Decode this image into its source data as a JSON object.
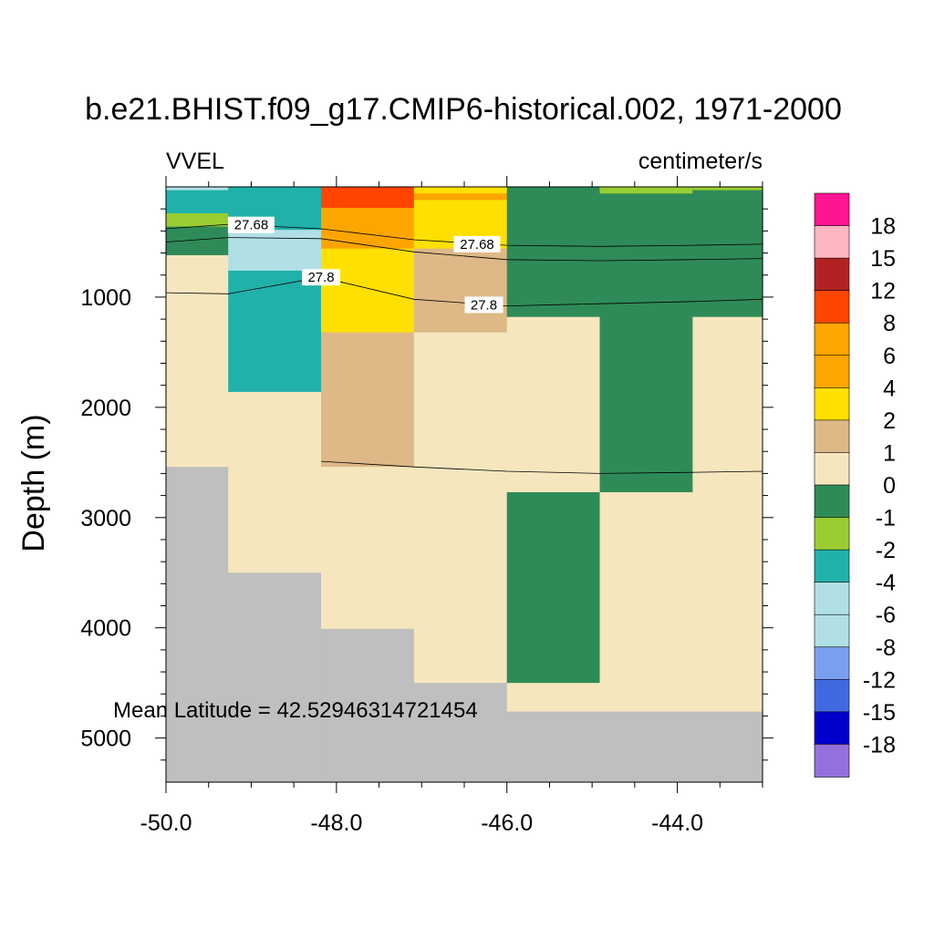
{
  "chart_data": {
    "type": "heatmap",
    "title": "b.e21.BHIST.f09_g17.CMIP6-historical.002, 1971-2000",
    "left_label": "VVEL",
    "right_label": "centimeter/s",
    "xlabel": "",
    "ylabel": "Depth (m)",
    "xlim": [
      -50.0,
      -43.0
    ],
    "ylim": [
      5400,
      0
    ],
    "x_ticks": [
      -50.0,
      -48.0,
      -46.0,
      -44.0
    ],
    "x_tick_labels": [
      "-50.0",
      "-48.0",
      "-46.0",
      "-44.0"
    ],
    "y_ticks": [
      1000,
      2000,
      3000,
      4000,
      5000
    ],
    "y_tick_labels": [
      "1000",
      "2000",
      "3000",
      "4000",
      "5000"
    ],
    "annotation": "Mean Latitude = 42.52946314721454",
    "colorbar": {
      "labels": [
        "18",
        "15",
        "12",
        "8",
        "6",
        "4",
        "2",
        "1",
        "0",
        "-1",
        "-2",
        "-4",
        "-6",
        "-8",
        "-12",
        "-15",
        "-18"
      ],
      "colors": [
        "#ff1493",
        "#ffb6c1",
        "#b22222",
        "#ff4500",
        "#ffa500",
        "#ffa500",
        "#ffe000",
        "#deb887",
        "#f5e6be",
        "#2e8b57",
        "#9acd32",
        "#20b2aa",
        "#b0e0e6",
        "#b0e0e6",
        "#7b9ff0",
        "#4169e1",
        "#0000cd",
        "#9370db"
      ]
    },
    "cells": [
      {
        "x": [
          -50.0,
          -49.27
        ],
        "y": [
          0,
          30
        ],
        "color": "#b0e0e6"
      },
      {
        "x": [
          -50.0,
          -49.27
        ],
        "y": [
          30,
          240
        ],
        "color": "#20b2aa"
      },
      {
        "x": [
          -50.0,
          -49.27
        ],
        "y": [
          240,
          360
        ],
        "color": "#9acd32"
      },
      {
        "x": [
          -50.0,
          -49.27
        ],
        "y": [
          360,
          620
        ],
        "color": "#2e8b57"
      },
      {
        "x": [
          -50.0,
          -49.27
        ],
        "y": [
          620,
          2540
        ],
        "color": "#f5e6be"
      },
      {
        "x": [
          -50.0,
          -49.27
        ],
        "y": [
          2540,
          5400
        ],
        "color": "#bfbfbf"
      },
      {
        "x": [
          -49.27,
          -48.18
        ],
        "y": [
          0,
          390
        ],
        "color": "#20b2aa"
      },
      {
        "x": [
          -49.27,
          -48.18
        ],
        "y": [
          390,
          760
        ],
        "color": "#b0e0e6"
      },
      {
        "x": [
          -49.27,
          -48.18
        ],
        "y": [
          760,
          1860
        ],
        "color": "#20b2aa"
      },
      {
        "x": [
          -49.27,
          -48.18
        ],
        "y": [
          1860,
          3500
        ],
        "color": "#f5e6be"
      },
      {
        "x": [
          -49.27,
          -48.18
        ],
        "y": [
          3500,
          5400
        ],
        "color": "#bfbfbf"
      },
      {
        "x": [
          -48.18,
          -47.09
        ],
        "y": [
          0,
          190
        ],
        "color": "#ff4500"
      },
      {
        "x": [
          -48.18,
          -47.09
        ],
        "y": [
          190,
          560
        ],
        "color": "#ffa500"
      },
      {
        "x": [
          -48.18,
          -47.09
        ],
        "y": [
          560,
          1320
        ],
        "color": "#ffe000"
      },
      {
        "x": [
          -48.18,
          -47.09
        ],
        "y": [
          1320,
          2540
        ],
        "color": "#deb887"
      },
      {
        "x": [
          -48.18,
          -47.09
        ],
        "y": [
          2540,
          4010
        ],
        "color": "#f5e6be"
      },
      {
        "x": [
          -48.18,
          -47.09
        ],
        "y": [
          4010,
          5400
        ],
        "color": "#bfbfbf"
      },
      {
        "x": [
          -47.09,
          -46.0
        ],
        "y": [
          0,
          60
        ],
        "color": "#ffe000"
      },
      {
        "x": [
          -47.09,
          -46.0
        ],
        "y": [
          60,
          120
        ],
        "color": "#ffa500"
      },
      {
        "x": [
          -47.09,
          -46.0
        ],
        "y": [
          120,
          560
        ],
        "color": "#ffe000"
      },
      {
        "x": [
          -47.09,
          -46.0
        ],
        "y": [
          560,
          1320
        ],
        "color": "#deb887"
      },
      {
        "x": [
          -47.09,
          -46.0
        ],
        "y": [
          1320,
          4500
        ],
        "color": "#f5e6be"
      },
      {
        "x": [
          -47.09,
          -46.0
        ],
        "y": [
          4500,
          5400
        ],
        "color": "#bfbfbf"
      },
      {
        "x": [
          -46.0,
          -44.91
        ],
        "y": [
          0,
          1180
        ],
        "color": "#2e8b57"
      },
      {
        "x": [
          -46.0,
          -44.91
        ],
        "y": [
          1180,
          2770
        ],
        "color": "#f5e6be"
      },
      {
        "x": [
          -46.0,
          -44.91
        ],
        "y": [
          2770,
          4500
        ],
        "color": "#2e8b57"
      },
      {
        "x": [
          -46.0,
          -44.91
        ],
        "y": [
          4500,
          4760
        ],
        "color": "#f5e6be"
      },
      {
        "x": [
          -46.0,
          -44.91
        ],
        "y": [
          4760,
          5400
        ],
        "color": "#bfbfbf"
      },
      {
        "x": [
          -44.91,
          -43.82
        ],
        "y": [
          0,
          60
        ],
        "color": "#9acd32"
      },
      {
        "x": [
          -44.91,
          -43.82
        ],
        "y": [
          60,
          2770
        ],
        "color": "#2e8b57"
      },
      {
        "x": [
          -44.91,
          -43.82
        ],
        "y": [
          2770,
          4760
        ],
        "color": "#f5e6be"
      },
      {
        "x": [
          -44.91,
          -43.82
        ],
        "y": [
          4760,
          5400
        ],
        "color": "#bfbfbf"
      },
      {
        "x": [
          -43.82,
          -43.0
        ],
        "y": [
          0,
          30
        ],
        "color": "#9acd32"
      },
      {
        "x": [
          -43.82,
          -43.0
        ],
        "y": [
          30,
          1180
        ],
        "color": "#2e8b57"
      },
      {
        "x": [
          -43.82,
          -43.0
        ],
        "y": [
          1180,
          4760
        ],
        "color": "#f5e6be"
      },
      {
        "x": [
          -43.82,
          -43.0
        ],
        "y": [
          4760,
          5400
        ],
        "color": "#bfbfbf"
      }
    ],
    "contours": [
      {
        "label": "27.68",
        "points": [
          [
            -50.0,
            380
          ],
          [
            -49.27,
            340
          ],
          [
            -48.18,
            380
          ],
          [
            -47.09,
            480
          ],
          [
            -46.0,
            530
          ],
          [
            -44.91,
            540
          ],
          [
            -43.82,
            530
          ],
          [
            -43.0,
            520
          ]
        ]
      },
      {
        "label": "27.68",
        "points": [
          [
            -50.0,
            500
          ],
          [
            -49.27,
            460
          ],
          [
            -48.18,
            470
          ],
          [
            -47.09,
            590
          ],
          [
            -46.0,
            660
          ],
          [
            -44.91,
            670
          ],
          [
            -43.82,
            660
          ],
          [
            -43.0,
            650
          ]
        ]
      },
      {
        "label": "27.8",
        "points": [
          [
            -50.0,
            960
          ],
          [
            -49.27,
            970
          ],
          [
            -48.18,
            820
          ],
          [
            -47.09,
            1020
          ],
          [
            -46.0,
            1080
          ],
          [
            -44.91,
            1060
          ],
          [
            -43.82,
            1040
          ],
          [
            -43.0,
            1020
          ]
        ]
      },
      {
        "label": "",
        "points": [
          [
            -48.18,
            2490
          ],
          [
            -47.09,
            2540
          ],
          [
            -46.0,
            2580
          ],
          [
            -44.91,
            2600
          ],
          [
            -43.82,
            2590
          ],
          [
            -43.0,
            2580
          ]
        ]
      }
    ],
    "contour_labels": [
      {
        "text": "27.68",
        "x": -49.0,
        "y": 345
      },
      {
        "text": "27.68",
        "x": -46.35,
        "y": 520
      },
      {
        "text": "27.8",
        "x": -48.18,
        "y": 820
      },
      {
        "text": "27.8",
        "x": -46.27,
        "y": 1070
      }
    ]
  }
}
